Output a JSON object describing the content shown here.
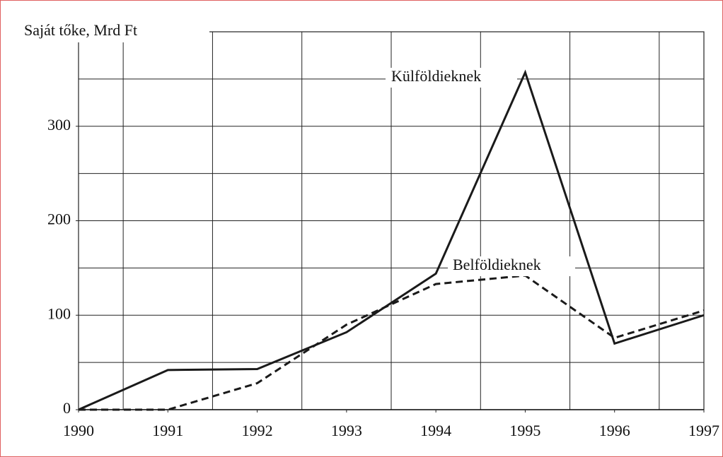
{
  "chart_data": {
    "type": "line",
    "y_label": "Saját tőke, Mrd Ft",
    "x": [
      1990,
      1991,
      1992,
      1993,
      1994,
      1995,
      1996,
      1997
    ],
    "xlim": [
      1990,
      1997
    ],
    "xticks": [
      1990,
      1991,
      1992,
      1993,
      1994,
      1995,
      1996,
      1997
    ],
    "xgrid": [
      1990.5,
      1991.5,
      1992.5,
      1993.5,
      1994.5,
      1995.5,
      1996.5
    ],
    "ylim": [
      0,
      400
    ],
    "yticks": [
      0,
      100,
      200,
      300
    ],
    "ygrid": [
      50,
      100,
      150,
      200,
      250,
      300,
      350
    ],
    "grid": true,
    "series": [
      {
        "name": "Külföldieknek",
        "color": "#1a1a1a",
        "dashed": false,
        "values": [
          0,
          42,
          43,
          82,
          144,
          357,
          70,
          100
        ]
      },
      {
        "name": "Belföldieknek",
        "color": "#1a1a1a",
        "dashed": true,
        "values": [
          0,
          0,
          28,
          90,
          133,
          142,
          76,
          105
        ]
      }
    ]
  }
}
